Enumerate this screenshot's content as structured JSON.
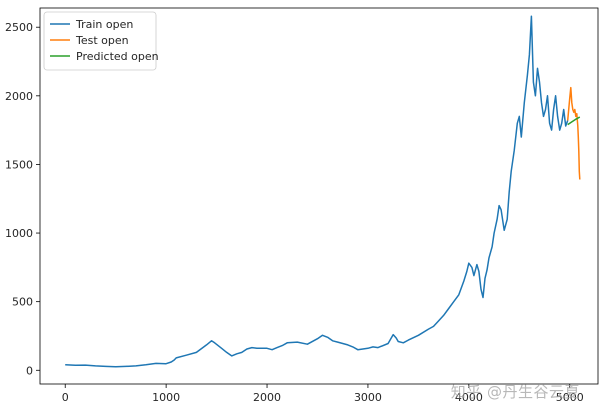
{
  "watermark": "知乎 @丹生谷云夏",
  "chart_data": {
    "type": "line",
    "title": "",
    "xlabel": "",
    "ylabel": "",
    "xlim": [
      -250,
      5280
    ],
    "ylim": [
      -100,
      2640
    ],
    "xticks": [
      0,
      1000,
      2000,
      3000,
      4000,
      5000
    ],
    "yticks": [
      0,
      500,
      1000,
      1500,
      2000,
      2500
    ],
    "grid": false,
    "legend_position": "top-left",
    "series": [
      {
        "name": "Train open",
        "color": "#1f77b4",
        "x": [
          0,
          100,
          200,
          300,
          400,
          500,
          600,
          700,
          800,
          900,
          1000,
          1050,
          1080,
          1100,
          1200,
          1300,
          1400,
          1450,
          1480,
          1550,
          1600,
          1650,
          1700,
          1750,
          1800,
          1850,
          1900,
          2000,
          2050,
          2100,
          2150,
          2200,
          2300,
          2400,
          2500,
          2550,
          2600,
          2650,
          2700,
          2800,
          2850,
          2900,
          2950,
          3000,
          3050,
          3100,
          3200,
          3250,
          3280,
          3300,
          3350,
          3400,
          3500,
          3600,
          3650,
          3700,
          3750,
          3800,
          3850,
          3900,
          3950,
          3980,
          4000,
          4030,
          4050,
          4080,
          4100,
          4120,
          4140,
          4160,
          4180,
          4200,
          4230,
          4250,
          4280,
          4300,
          4320,
          4350,
          4380,
          4400,
          4420,
          4450,
          4480,
          4500,
          4520,
          4550,
          4580,
          4600,
          4620,
          4640,
          4660,
          4680,
          4700,
          4720,
          4740,
          4760,
          4780,
          4800,
          4820,
          4840,
          4860,
          4880,
          4900,
          4920,
          4940,
          4960,
          4980
        ],
        "y": [
          40,
          37,
          38,
          32,
          28,
          26,
          28,
          32,
          40,
          50,
          48,
          60,
          75,
          90,
          110,
          130,
          185,
          215,
          200,
          160,
          130,
          105,
          120,
          130,
          155,
          165,
          160,
          160,
          150,
          165,
          180,
          200,
          205,
          190,
          230,
          255,
          240,
          215,
          205,
          185,
          170,
          150,
          155,
          160,
          170,
          165,
          195,
          260,
          235,
          210,
          200,
          220,
          255,
          300,
          320,
          360,
          400,
          450,
          500,
          550,
          650,
          720,
          780,
          750,
          690,
          770,
          720,
          590,
          530,
          670,
          730,
          820,
          900,
          1000,
          1100,
          1200,
          1170,
          1020,
          1100,
          1300,
          1450,
          1600,
          1800,
          1850,
          1700,
          1950,
          2150,
          2300,
          2580,
          2100,
          2000,
          2200,
          2100,
          1950,
          1850,
          1900,
          2000,
          1800,
          1750,
          1900,
          2000,
          1850,
          1750,
          1800,
          1900,
          1780,
          1820
        ]
      },
      {
        "name": "Test open",
        "color": "#ff7f0e",
        "x": [
          4980,
          5000,
          5010,
          5020,
          5030,
          5040,
          5050,
          5060,
          5070,
          5080,
          5085,
          5090,
          5095,
          5100
        ],
        "y": [
          1820,
          1980,
          2060,
          1950,
          1900,
          1880,
          1900,
          1850,
          1870,
          1780,
          1700,
          1600,
          1450,
          1390
        ]
      },
      {
        "name": "Predicted open",
        "color": "#2ca02c",
        "x": [
          4980,
          5020,
          5060,
          5100
        ],
        "y": [
          1790,
          1810,
          1830,
          1845
        ]
      }
    ]
  }
}
